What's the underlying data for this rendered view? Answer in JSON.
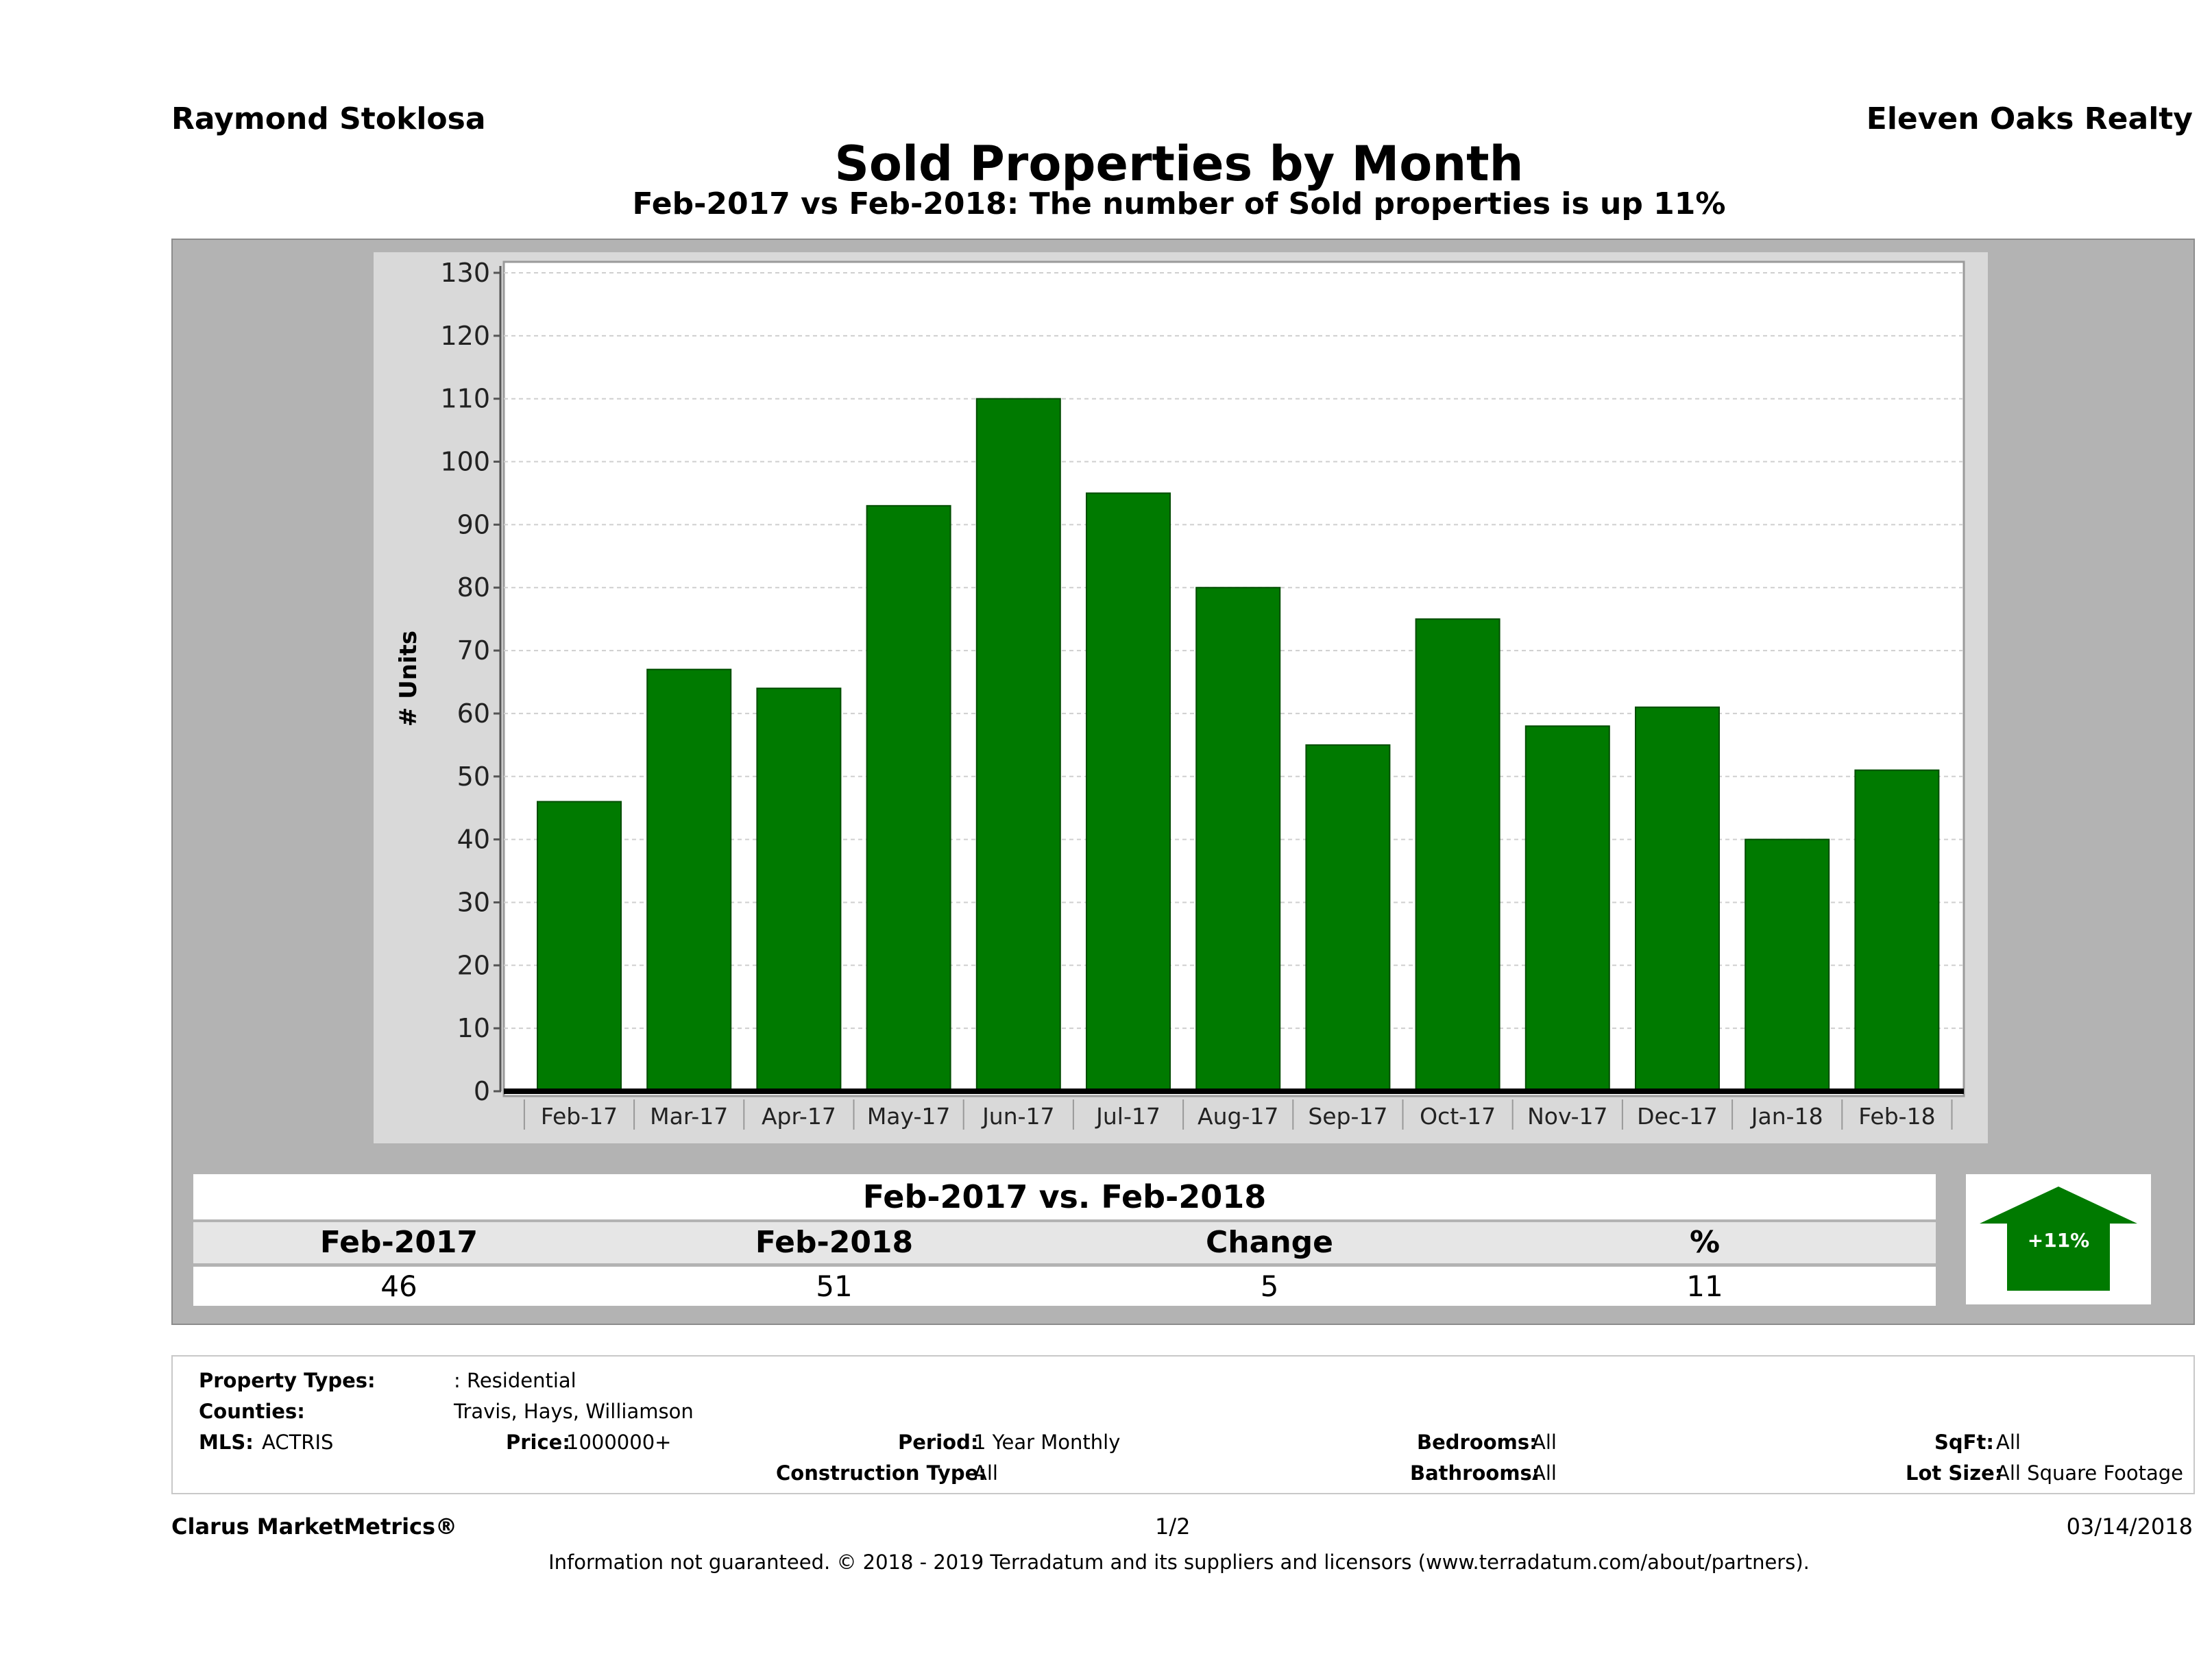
{
  "header": {
    "agent": "Raymond Stoklosa",
    "company": "Eleven Oaks Realty",
    "title": "Sold Properties by Month",
    "subtitle": "Feb-2017 vs Feb-2018: The number of Sold  properties is up 11%"
  },
  "chart_data": {
    "type": "bar",
    "categories": [
      "Feb-17",
      "Mar-17",
      "Apr-17",
      "May-17",
      "Jun-17",
      "Jul-17",
      "Aug-17",
      "Sep-17",
      "Oct-17",
      "Nov-17",
      "Dec-17",
      "Jan-18",
      "Feb-18"
    ],
    "values": [
      46,
      67,
      64,
      93,
      110,
      95,
      80,
      55,
      75,
      58,
      61,
      40,
      51
    ],
    "ylabel": "# Units",
    "xlabel": "",
    "ylim": [
      0,
      130
    ],
    "yticks": [
      0,
      10,
      20,
      30,
      40,
      50,
      60,
      70,
      80,
      90,
      100,
      110,
      120,
      130
    ],
    "bar_color": "#007a00",
    "grid": true
  },
  "summary": {
    "title": "Feb-2017 vs. Feb-2018",
    "headers": [
      "Feb-2017",
      "Feb-2018",
      "Change",
      "%"
    ],
    "values": [
      "46",
      "51",
      "5",
      "11"
    ],
    "badge": "+11%",
    "badge_color": "#007a00"
  },
  "filters": {
    "property_types_label": "Property Types:",
    "property_types_value": ": Residential",
    "counties_label": "Counties:",
    "counties_value": "Travis, Hays, Williamson",
    "mls_label": "MLS:",
    "mls_value": "ACTRIS",
    "price_label": "Price:",
    "price_value": "1000000+",
    "period_label": "Period:",
    "period_value": "1 Year Monthly",
    "construction_label": "Construction Type:",
    "construction_value": "All",
    "bedrooms_label": "Bedrooms:",
    "bedrooms_value": "All",
    "bathrooms_label": "Bathrooms:",
    "bathrooms_value": "All",
    "sqft_label": "SqFt:",
    "sqft_value": "All",
    "lotsize_label": "Lot Size:",
    "lotsize_value": "All Square Footage"
  },
  "footer": {
    "brand": "Clarus MarketMetrics®",
    "page": "1/2",
    "date": "03/14/2018",
    "disclaimer": "Information not guaranteed. © 2018 - 2019 Terradatum and its suppliers and licensors (www.terradatum.com/about/partners)."
  }
}
